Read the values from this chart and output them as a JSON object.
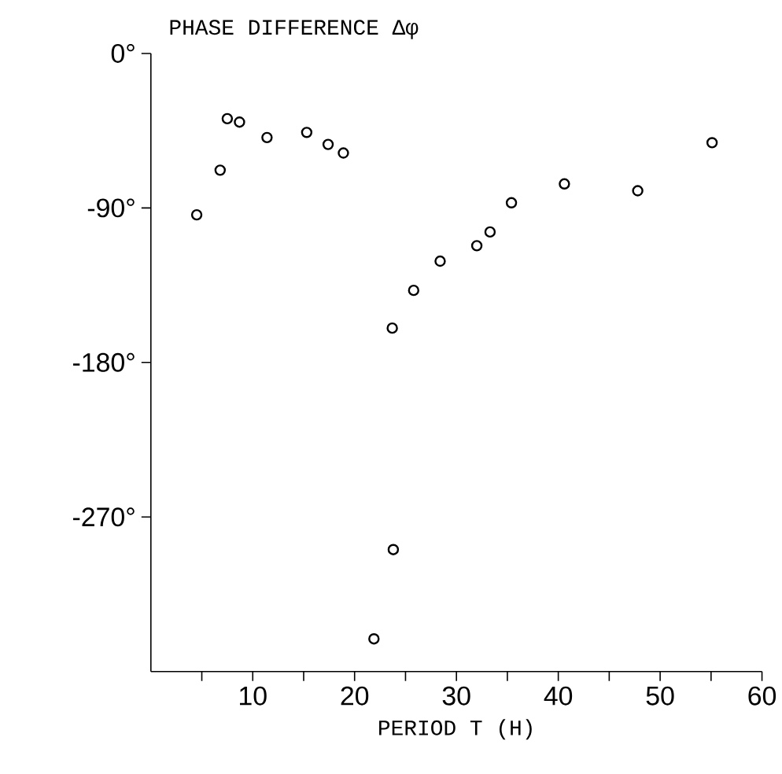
{
  "chart_data": {
    "type": "scatter",
    "ylabel": "PHASE DIFFERENCE Δφ",
    "xlabel": "PERIOD T (H)",
    "x": [
      4.5,
      6.8,
      7.5,
      8.7,
      11.4,
      15.3,
      17.4,
      18.9,
      21.9,
      23.7,
      23.8,
      25.8,
      28.4,
      32.0,
      33.3,
      35.4,
      40.6,
      47.8,
      55.1
    ],
    "values": [
      -94,
      -68,
      -38,
      -40,
      -49,
      -46,
      -53,
      -58,
      -341,
      -160,
      -289,
      -138,
      -121,
      -112,
      -104,
      -87,
      -76,
      -80,
      -52
    ],
    "color": "#000000",
    "marker": "circle",
    "xlim": [
      0,
      60
    ],
    "ylim": [
      -360,
      0
    ],
    "xticks": [
      {
        "value": 5,
        "label": null
      },
      10,
      {
        "value": 15,
        "label": null
      },
      20,
      {
        "value": 25,
        "label": null
      },
      30,
      {
        "value": 35,
        "label": null
      },
      40,
      {
        "value": 45,
        "label": null
      },
      50,
      {
        "value": 55,
        "label": null
      },
      60
    ],
    "yticks": [
      {
        "value": -270,
        "label": "-270°"
      },
      {
        "value": -180,
        "label": "-180°"
      },
      {
        "value": -90,
        "label": "-90°"
      },
      {
        "value": 0,
        "label": "0°"
      }
    ],
    "grid": false
  }
}
